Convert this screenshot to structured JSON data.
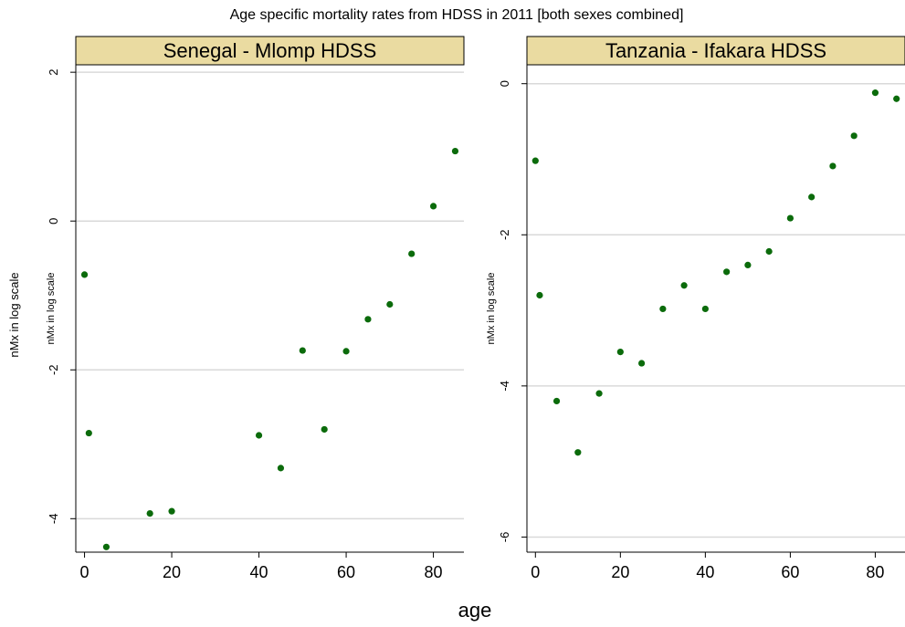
{
  "figure": {
    "title": "Age specific mortality rates from HDSS in 2011 [both sexes combined]",
    "xlabel": "age",
    "outer_ylabel": "nMx in log scale"
  },
  "colors": {
    "header_fill": "#eadba1",
    "marker": "#0b6b0b",
    "grid": "#d9d9d9",
    "axis": "#000000"
  },
  "chart_data": [
    {
      "type": "scatter",
      "title": "Senegal - Mlomp HDSS",
      "xlabel": "age",
      "ylabel": "nMx in log scale",
      "xlim": [
        -2,
        87
      ],
      "ylim": [
        -4.45,
        2.1
      ],
      "xticks": [
        0,
        20,
        40,
        60,
        80
      ],
      "xtick_labels": [
        "0",
        "20",
        "40",
        "60",
        "80"
      ],
      "yticks": [
        -4,
        -2,
        0,
        2
      ],
      "ytick_labels": [
        "-4",
        "-2",
        "0",
        "2"
      ],
      "grid": true,
      "series": [
        {
          "x": [
            0,
            1,
            5,
            15,
            20,
            40,
            45,
            50,
            55,
            60,
            65,
            70,
            75,
            80,
            85
          ],
          "y": [
            -0.72,
            -2.85,
            -4.38,
            -3.93,
            -3.9,
            -2.88,
            -3.32,
            -1.74,
            -2.8,
            -1.75,
            -1.32,
            -1.12,
            -0.44,
            0.2,
            0.94
          ]
        }
      ]
    },
    {
      "type": "scatter",
      "title": "Tanzania - Ifakara HDSS",
      "xlabel": "age",
      "ylabel": "nMx in log scale",
      "xlim": [
        -2,
        87
      ],
      "ylim": [
        -6.2,
        0.25
      ],
      "xticks": [
        0,
        20,
        40,
        60,
        80
      ],
      "xtick_labels": [
        "0",
        "20",
        "40",
        "60",
        "80"
      ],
      "yticks": [
        -6,
        -4,
        -2,
        0
      ],
      "ytick_labels": [
        "-6",
        "-4",
        "-2",
        "0"
      ],
      "grid": true,
      "series": [
        {
          "x": [
            0,
            1,
            5,
            10,
            15,
            20,
            25,
            30,
            35,
            40,
            45,
            50,
            55,
            60,
            65,
            70,
            75,
            80,
            85
          ],
          "y": [
            -1.02,
            -2.8,
            -4.2,
            -4.88,
            -4.1,
            -3.55,
            -3.7,
            -2.98,
            -2.67,
            -2.98,
            -2.49,
            -2.4,
            -2.22,
            -1.78,
            -1.5,
            -1.09,
            -0.69,
            -0.12,
            -0.2
          ]
        }
      ]
    }
  ]
}
